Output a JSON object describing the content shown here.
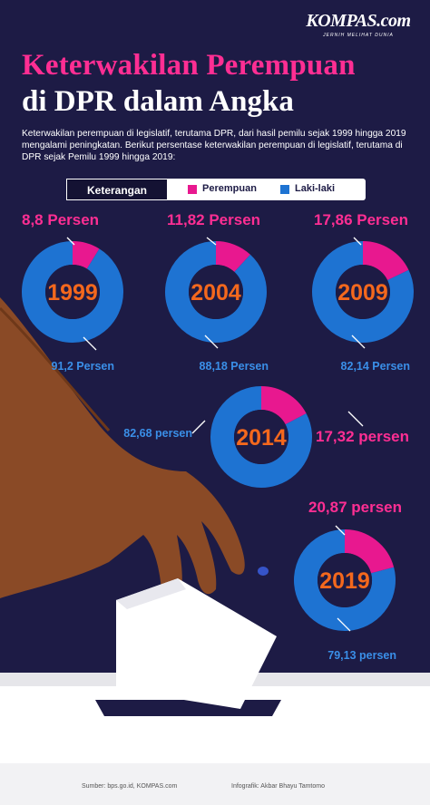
{
  "brand": {
    "name": "KOMPAS.com",
    "tagline": "JERNIH MELIHAT DUNIA"
  },
  "title": {
    "line1": "Keterwakilan Perempuan",
    "line2": "di DPR dalam Angka"
  },
  "intro": "Keterwakilan perempuan di legislatif, terutama DPR, dari hasil pemilu sejak 1999 hingga 2019 mengalami peningkatan. Berikut persentase keterwakilan perempuan di legislatif, terutama di DPR sejak Pemilu 1999 hingga 2019:",
  "legend": {
    "title": "Keterangan",
    "women": "Perempuan",
    "men": "Laki-laki"
  },
  "colors": {
    "women": "#e8188f",
    "men": "#1e73d2",
    "background": "#1d1b45",
    "women_label": "#ff2e93",
    "men_label": "#3a8fe8"
  },
  "chart_data": {
    "type": "pie",
    "categories": [
      "1999",
      "2004",
      "2009",
      "2014",
      "2019"
    ],
    "series": [
      {
        "name": "Perempuan",
        "values": [
          8.8,
          11.82,
          17.86,
          17.32,
          20.87
        ],
        "labels": [
          "8,8 Persen",
          "11,82 Persen",
          "17,86 Persen",
          "17,32 persen",
          "20,87 persen"
        ]
      },
      {
        "name": "Laki-laki",
        "values": [
          91.2,
          88.18,
          82.14,
          82.68,
          79.13
        ],
        "labels": [
          "91,2 Persen",
          "88,18 Persen",
          "82,14 Persen",
          "82,68 persen",
          "79,13 persen"
        ]
      }
    ]
  },
  "footer": {
    "source": "Sumber: bps.go.id, KOMPAS.com",
    "credit": "Infografik: Akbar Bhayu Tamtomo"
  }
}
